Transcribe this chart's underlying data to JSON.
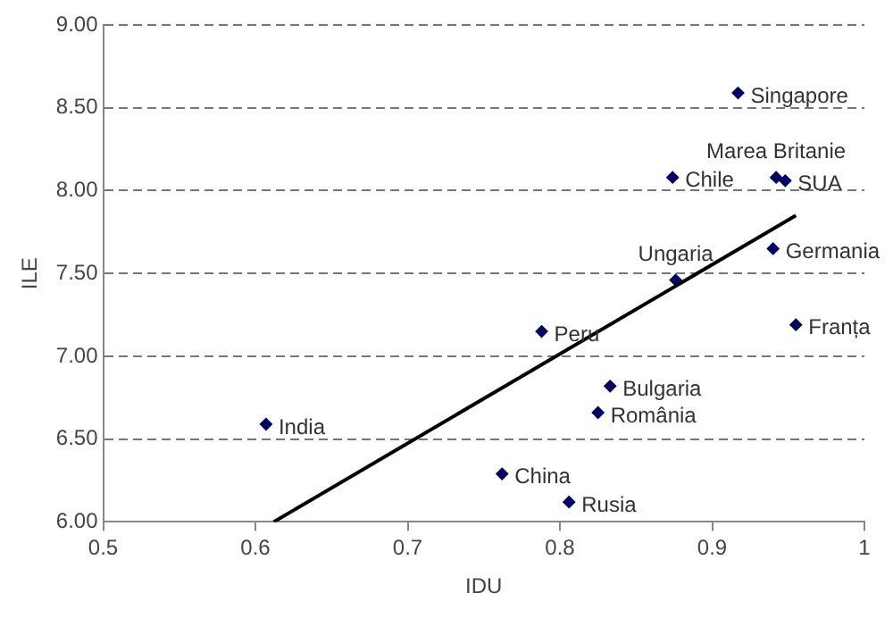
{
  "chart_data": {
    "type": "scatter",
    "xlabel": "IDU",
    "ylabel": "ILE",
    "xlim": [
      0.5,
      1
    ],
    "xticks": [
      0.5,
      0.6,
      0.7,
      0.8,
      0.9,
      1
    ],
    "ylim": [
      6,
      9
    ],
    "yticks": [
      {
        "value": 6,
        "label": "6.00"
      },
      {
        "value": 6.5,
        "label": "6.50"
      },
      {
        "value": 7,
        "label": "7.00"
      },
      {
        "value": 7.5,
        "label": "7.50"
      },
      {
        "value": 8,
        "label": "8.00"
      },
      {
        "value": 8.5,
        "label": "8.50"
      },
      {
        "value": 9,
        "label": "9.00"
      }
    ],
    "grid": "y",
    "legend": false,
    "marker": "diamond",
    "series": [
      {
        "name": "Singapore",
        "color": "#000066",
        "x": [
          0.917
        ],
        "values": [
          8.59
        ]
      },
      {
        "name": "Marea Britanie",
        "color": "#000066",
        "x": [
          0.942
        ],
        "values": [
          8.08
        ]
      },
      {
        "name": "SUA",
        "color": "#000066",
        "x": [
          0.948
        ],
        "values": [
          8.06
        ]
      },
      {
        "name": "Chile",
        "color": "#000066",
        "x": [
          0.874
        ],
        "values": [
          8.08
        ]
      },
      {
        "name": "Ungaria",
        "color": "#000066",
        "x": [
          0.876
        ],
        "values": [
          7.46
        ]
      },
      {
        "name": "Germania",
        "color": "#000066",
        "x": [
          0.94
        ],
        "values": [
          7.65
        ]
      },
      {
        "name": "Franța",
        "color": "#000066",
        "x": [
          0.955
        ],
        "values": [
          7.19
        ]
      },
      {
        "name": "Peru",
        "color": "#000066",
        "x": [
          0.788
        ],
        "values": [
          7.15
        ]
      },
      {
        "name": "Bulgaria",
        "color": "#000066",
        "x": [
          0.833
        ],
        "values": [
          6.82
        ]
      },
      {
        "name": "România",
        "color": "#000066",
        "x": [
          0.825
        ],
        "values": [
          6.66
        ]
      },
      {
        "name": "India",
        "color": "#000066",
        "x": [
          0.607
        ],
        "values": [
          6.59
        ]
      },
      {
        "name": "China",
        "color": "#000066",
        "x": [
          0.762
        ],
        "values": [
          6.29
        ]
      },
      {
        "name": "Rusia",
        "color": "#000066",
        "x": [
          0.806
        ],
        "values": [
          6.12
        ]
      },
      {
        "type": "line",
        "color": "#000000",
        "x": [
          0.612,
          0.955
        ],
        "values": [
          6,
          7.85
        ],
        "marker": "none",
        "line_style": "solid"
      }
    ]
  }
}
